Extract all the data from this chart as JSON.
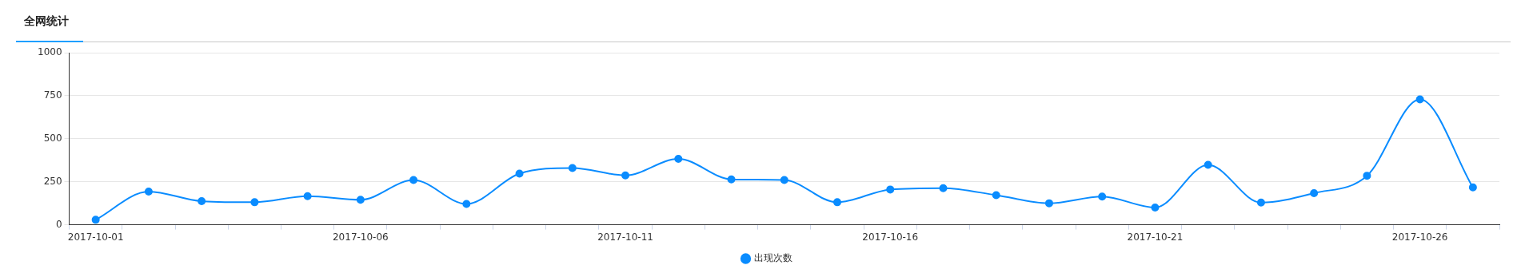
{
  "chart_data": {
    "type": "line",
    "title": "全网统计",
    "categories": [
      "2017-10-01",
      null,
      null,
      null,
      null,
      "2017-10-06",
      null,
      null,
      null,
      null,
      "2017-10-11",
      null,
      null,
      null,
      null,
      "2017-10-16",
      null,
      null,
      null,
      null,
      "2017-10-21",
      null,
      null,
      null,
      null,
      "2017-10-26",
      null
    ],
    "series": [
      {
        "name": "出现次数",
        "color": "#0a8cff",
        "values": [
          29,
          193,
          137,
          131,
          166,
          145,
          260,
          121,
          297,
          330,
          287,
          383,
          264,
          260,
          131,
          205,
          213,
          172,
          125,
          164,
          100,
          348,
          129,
          184,
          285,
          729,
          217
        ]
      }
    ],
    "ylim": [
      0,
      1000
    ],
    "yticks": [
      0,
      250,
      500,
      750,
      1000
    ],
    "grid": "y",
    "legend": "bottom",
    "marker": "circle",
    "line_style": "solid"
  }
}
